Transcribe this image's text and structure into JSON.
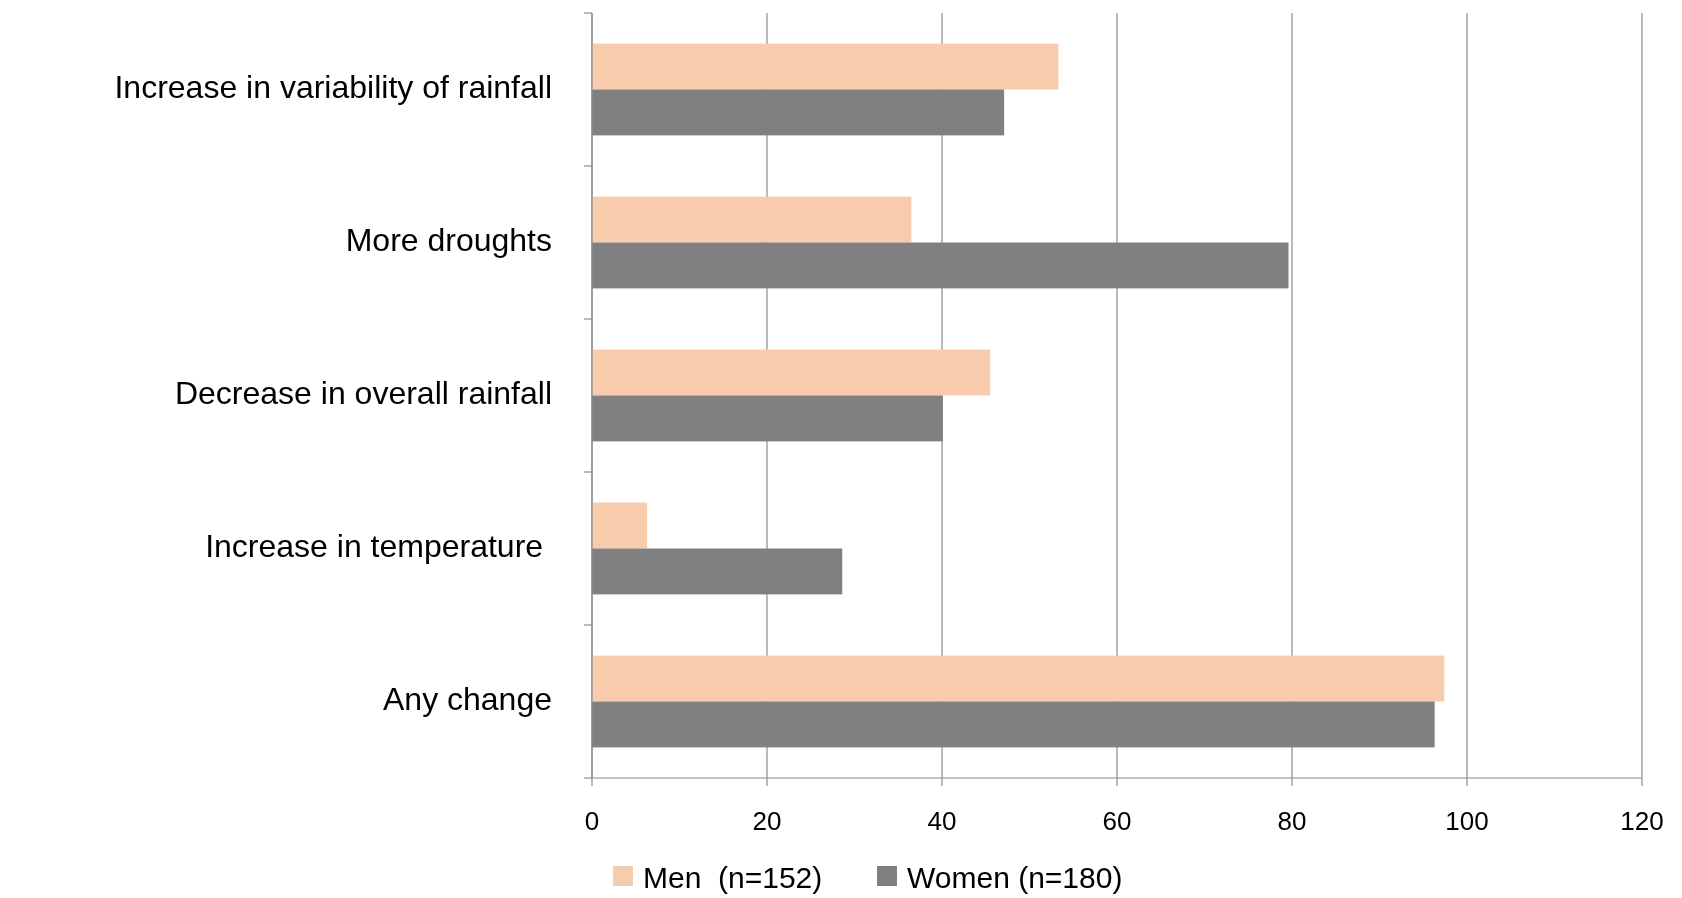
{
  "chart_data": {
    "type": "bar",
    "orientation": "horizontal",
    "categories": [
      "Increase in variability of rainfall",
      "More droughts",
      "Decrease in overall rainfall",
      "Increase in temperature ",
      "Any change"
    ],
    "series": [
      {
        "name": "Men  (n=152)",
        "color": "#f8cbad",
        "values": [
          53.3,
          36.5,
          45.5,
          6.3,
          97.4
        ]
      },
      {
        "name": "Women (n=180)",
        "color": "#808080",
        "values": [
          47.1,
          79.6,
          40.1,
          28.6,
          96.3
        ]
      }
    ],
    "xlim": [
      0,
      120
    ],
    "xticks": [
      0,
      20,
      40,
      60,
      80,
      100,
      120
    ],
    "grid": "x",
    "legend": "bottom"
  }
}
